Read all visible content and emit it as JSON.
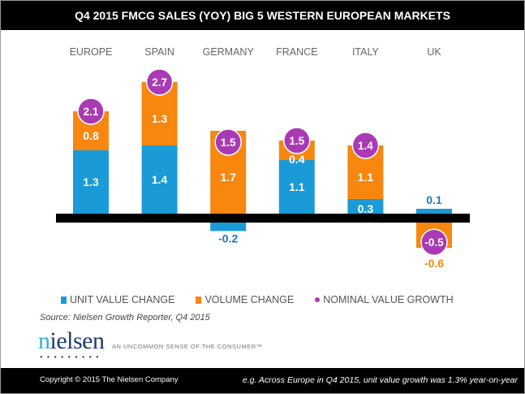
{
  "chart_data": {
    "type": "bar",
    "stacked": true,
    "title": "Q4 2015 FMCG SALES (YOY) BIG 5 WESTERN EUROPEAN MARKETS",
    "categories": [
      "EUROPE",
      "SPAIN",
      "GERMANY",
      "FRANCE",
      "ITALY",
      "UK"
    ],
    "series": [
      {
        "name": "UNIT VALUE CHANGE",
        "color": "#1a9bd7",
        "values": [
          1.3,
          1.4,
          -0.2,
          1.1,
          0.3,
          0.1
        ],
        "labels": [
          "1.3",
          "1.4",
          "-0.2",
          "1.1",
          "0.3",
          "0.1"
        ]
      },
      {
        "name": "VOLUME CHANGE",
        "color": "#f7870f",
        "values": [
          0.8,
          1.3,
          1.7,
          0.4,
          1.1,
          -0.6
        ],
        "labels": [
          "0.8",
          "1.3",
          "1.7",
          "0.4",
          "1.1",
          "-0.6"
        ]
      },
      {
        "name": "NOMINAL VALUE GROWTH",
        "color": "#a93ab4",
        "marker": "circle",
        "values": [
          2.1,
          2.7,
          1.5,
          1.5,
          1.4,
          -0.5
        ],
        "labels": [
          "2.1",
          "2.7",
          "1.5",
          "1.5",
          "1.4",
          "-0.5"
        ]
      }
    ],
    "legend_position": "bottom",
    "grid": false
  },
  "legend": [
    "UNIT VALUE CHANGE",
    "VOLUME CHANGE",
    "NOMINAL VALUE GROWTH"
  ],
  "source": "Source: Nielsen Growth Reporter, Q4 2015",
  "logo": {
    "text": "nielsen"
  },
  "tagline": "AN UNCOMMON SENSE OF THE CONSUMER™",
  "footer": {
    "copyright": "Copyright © 2015 The Nielsen Company",
    "example": "e.g. Across Europe in Q4 2015, unit value growth was 1.3% year-on-year"
  }
}
